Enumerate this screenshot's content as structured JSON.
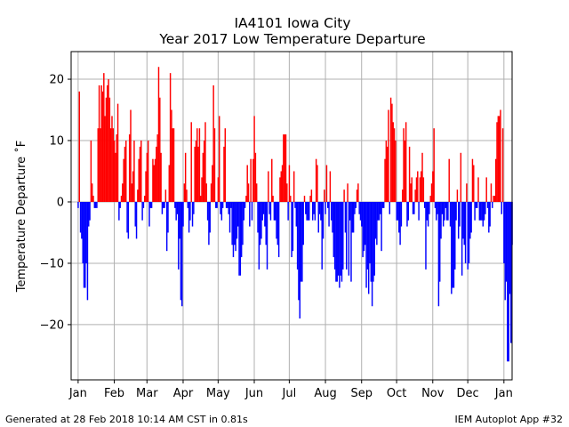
{
  "footer": {
    "left": "Generated at 28 Feb 2018 10:14 AM CST in 0.81s",
    "right": "IEM Autoplot App #32"
  },
  "chart_data": {
    "type": "bar",
    "title": "IA4101 Iowa City",
    "subtitle": "Year 2017 Low Temperature Departure",
    "xlabel": "",
    "ylabel": "Temperature Departure ˚F",
    "ylim": [
      -29,
      24.5
    ],
    "xlim": [
      "2016-12-26",
      "2018-01-08"
    ],
    "yticks": [
      -20,
      -10,
      0,
      10,
      20
    ],
    "ytick_labels": [
      "−20",
      "−10",
      "0",
      "10",
      "20"
    ],
    "xticks": [
      "2017-01-01",
      "2017-02-01",
      "2017-03-01",
      "2017-04-01",
      "2017-05-01",
      "2017-06-01",
      "2017-07-01",
      "2017-08-01",
      "2017-09-01",
      "2017-10-01",
      "2017-11-01",
      "2017-12-01",
      "2018-01-01"
    ],
    "xtick_labels": [
      "Jan",
      "Feb",
      "Mar",
      "Apr",
      "May",
      "Jun",
      "Jul",
      "Aug",
      "Sep",
      "Oct",
      "Nov",
      "Dec",
      "Jan"
    ],
    "grid": true,
    "positive_color": "#ff0000",
    "negative_color": "#0000ff",
    "start_date": "2017-01-01",
    "values": [
      -1,
      18,
      -5,
      -6,
      -10,
      -14,
      -14,
      -10,
      -16,
      -4,
      -3,
      10,
      3,
      1,
      -1,
      -1,
      -1,
      12,
      19,
      12,
      19,
      18,
      21,
      14,
      17,
      19,
      20,
      17,
      12,
      14,
      12,
      10,
      8,
      11,
      16,
      -3,
      -1,
      1,
      3,
      7,
      9,
      10,
      -5,
      -6,
      11,
      15,
      3,
      5,
      10,
      -4,
      -6,
      2,
      7,
      9,
      10,
      -3,
      -1,
      1,
      5,
      8,
      10,
      -4,
      -1,
      -1,
      7,
      6,
      7,
      9,
      11,
      22,
      17,
      8,
      -2,
      -1,
      -1,
      2,
      -8,
      -5,
      6,
      21,
      15,
      12,
      12,
      -1,
      -3,
      -2,
      -11,
      -6,
      -16,
      -17,
      -4,
      3,
      8,
      2,
      -1,
      -5,
      -3,
      13,
      -4,
      -2,
      9,
      10,
      12,
      9,
      12,
      1,
      4,
      8,
      10,
      13,
      3,
      -3,
      -7,
      -5,
      3,
      6,
      19,
      12,
      -1,
      -1,
      4,
      14,
      -2,
      -3,
      -1,
      9,
      12,
      -1,
      -1,
      -2,
      -5,
      -1,
      -7,
      -9,
      -7,
      -8,
      -6,
      -4,
      -12,
      -12,
      -9,
      -7,
      -3,
      -1,
      1,
      6,
      3,
      -4,
      7,
      -3,
      7,
      14,
      8,
      3,
      -5,
      -11,
      -7,
      -6,
      -3,
      -2,
      -4,
      -7,
      -11,
      5,
      -2,
      -3,
      7,
      1,
      -3,
      -3,
      -6,
      -7,
      -9,
      4,
      5,
      6,
      11,
      11,
      11,
      3,
      -3,
      6,
      1,
      -9,
      -8,
      5,
      -1,
      -4,
      -11,
      -16,
      -19,
      -13,
      -13,
      -7,
      1,
      -2,
      -3,
      -3,
      -3,
      1,
      2,
      -3,
      -2,
      -3,
      7,
      6,
      -5,
      -2,
      -3,
      -11,
      -6,
      2,
      -2,
      6,
      -1,
      -4,
      5,
      -3,
      -5,
      -9,
      -11,
      -13,
      -13,
      -12,
      -14,
      -12,
      -13,
      -11,
      2,
      -5,
      -11,
      3,
      -12,
      -3,
      -13,
      -5,
      -5,
      -2,
      -1,
      2,
      3,
      -2,
      -3,
      -4,
      -9,
      -8,
      -7,
      -14,
      -11,
      -15,
      -10,
      -13,
      -17,
      -13,
      -12,
      -6,
      -7,
      -3,
      -3,
      -2,
      -8,
      -1,
      -1,
      7,
      10,
      9,
      15,
      -2,
      17,
      16,
      13,
      12,
      10,
      -3,
      -3,
      -5,
      -7,
      -4,
      2,
      12,
      10,
      13,
      -4,
      -3,
      9,
      3,
      4,
      -2,
      -2,
      2,
      4,
      5,
      -3,
      4,
      5,
      8,
      4,
      -1,
      -11,
      -3,
      -4,
      -2,
      1,
      3,
      5,
      12,
      -1,
      -3,
      -2,
      -17,
      -13,
      -6,
      -2,
      -4,
      -3,
      -1,
      -3,
      -3,
      7,
      -4,
      -15,
      -14,
      -14,
      -11,
      -3,
      2,
      -6,
      -4,
      8,
      -12,
      -6,
      -7,
      -10,
      3,
      -11,
      -10,
      -6,
      -5,
      7,
      6,
      -3,
      -1,
      -1,
      4,
      -3,
      -3,
      -3,
      -4,
      -3,
      -2,
      4,
      -1,
      -5,
      -4,
      3,
      -1,
      1,
      1,
      7,
      13,
      14,
      14,
      15,
      -2,
      12,
      -10,
      -16,
      -13,
      -26,
      -26,
      -15,
      -23,
      -7
    ]
  }
}
